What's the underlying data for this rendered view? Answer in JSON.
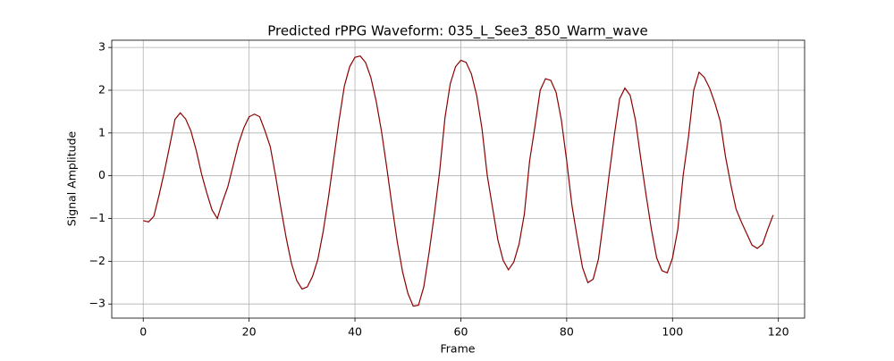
{
  "chart_data": {
    "type": "line",
    "title": "Predicted rPPG Waveform: 035_L_See3_850_Warm_wave",
    "x_label": "Frame",
    "y_label": "Signal Amplitude",
    "x": [
      0,
      1,
      2,
      3,
      4,
      5,
      6,
      7,
      8,
      9,
      10,
      11,
      12,
      13,
      14,
      15,
      16,
      17,
      18,
      19,
      20,
      21,
      22,
      23,
      24,
      25,
      26,
      27,
      28,
      29,
      30,
      31,
      32,
      33,
      34,
      35,
      36,
      37,
      38,
      39,
      40,
      41,
      42,
      43,
      44,
      45,
      46,
      47,
      48,
      49,
      50,
      51,
      52,
      53,
      54,
      55,
      56,
      57,
      58,
      59,
      60,
      61,
      62,
      63,
      64,
      65,
      66,
      67,
      68,
      69,
      70,
      71,
      72,
      73,
      74,
      75,
      76,
      77,
      78,
      79,
      80,
      81,
      82,
      83,
      84,
      85,
      86,
      87,
      88,
      89,
      90,
      91,
      92,
      93,
      94,
      95,
      96,
      97,
      98,
      99,
      100,
      101,
      102,
      103,
      104,
      105,
      106,
      107,
      108,
      109,
      110,
      111,
      112,
      113,
      114,
      115,
      116,
      117,
      118,
      119
    ],
    "values": [
      -1.05,
      -1.08,
      -0.95,
      -0.45,
      0.1,
      0.7,
      1.32,
      1.47,
      1.33,
      1.05,
      0.6,
      0.05,
      -0.4,
      -0.8,
      -1.0,
      -0.6,
      -0.25,
      0.25,
      0.75,
      1.12,
      1.38,
      1.44,
      1.38,
      1.05,
      0.68,
      0.0,
      -0.75,
      -1.45,
      -2.05,
      -2.45,
      -2.65,
      -2.6,
      -2.35,
      -1.95,
      -1.3,
      -0.5,
      0.4,
      1.3,
      2.1,
      2.55,
      2.77,
      2.8,
      2.65,
      2.3,
      1.75,
      1.05,
      0.2,
      -0.7,
      -1.55,
      -2.25,
      -2.75,
      -3.05,
      -3.03,
      -2.6,
      -1.8,
      -0.9,
      0.1,
      1.35,
      2.15,
      2.55,
      2.7,
      2.65,
      2.38,
      1.88,
      1.1,
      0.0,
      -0.75,
      -1.5,
      -1.98,
      -2.2,
      -2.02,
      -1.6,
      -0.9,
      0.35,
      1.15,
      2.0,
      2.27,
      2.23,
      1.95,
      1.3,
      0.35,
      -0.7,
      -1.45,
      -2.15,
      -2.5,
      -2.42,
      -1.95,
      -1.0,
      0.0,
      0.95,
      1.8,
      2.05,
      1.88,
      1.3,
      0.4,
      -0.45,
      -1.25,
      -1.92,
      -2.22,
      -2.27,
      -1.92,
      -1.25,
      0.0,
      0.9,
      2.0,
      2.42,
      2.3,
      2.05,
      1.7,
      1.28,
      0.45,
      -0.2,
      -0.78,
      -1.08,
      -1.35,
      -1.62,
      -1.7,
      -1.6,
      -1.25,
      -0.92
    ],
    "color": "#8b0000",
    "xlim": [
      -5.95,
      124.95
    ],
    "ylim": [
      -3.33,
      3.17
    ],
    "xticks": [
      0,
      20,
      40,
      60,
      80,
      100,
      120
    ],
    "yticks": [
      {
        "value": -3,
        "label": "−3"
      },
      {
        "value": -2,
        "label": "−2"
      },
      {
        "value": -1,
        "label": "−1"
      },
      0,
      1,
      2,
      3
    ],
    "grid": true
  }
}
